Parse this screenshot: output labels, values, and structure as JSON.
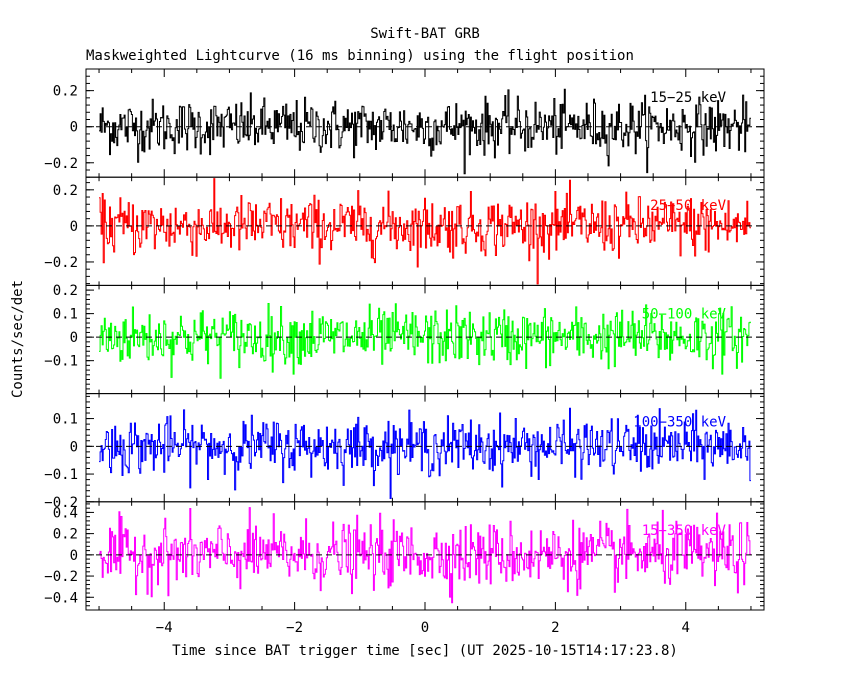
{
  "title": "Swift-BAT GRB",
  "subtitle": "Maskweighted Lightcurve (16 ms binning) using the flight position",
  "xlabel": "Time since BAT trigger time [sec] (UT 2025-10-15T14:17:23.8)",
  "ylabel": "Counts/sec/det",
  "chart_data": {
    "type": "line",
    "title": "Swift-BAT GRB",
    "subtitle": "Maskweighted Lightcurve (16 ms binning) using the flight position",
    "xlabel": "Time since BAT trigger time [sec] (UT 2025-10-15T14:17:23.8)",
    "ylabel": "Counts/sec/det",
    "xlim": [
      -5.2,
      5.2
    ],
    "x_ticks": [
      -4,
      -2,
      0,
      2,
      4
    ],
    "x_tick_labels": [
      "−4",
      "−2",
      "0",
      "2",
      "4"
    ],
    "t_start": -5.0,
    "t_end": 5.0,
    "bin_width": 0.016,
    "series": [
      {
        "name": "15-25 keV",
        "label": "15−25 keV",
        "color": "#000000",
        "ylim": [
          -0.28,
          0.32
        ],
        "sigma": 0.075,
        "yticks": [
          -0.2,
          0,
          0.2
        ],
        "ytick_labels": [
          "−0.2",
          "0",
          "0.2"
        ]
      },
      {
        "name": "25-50 keV",
        "label": "25−50 keV",
        "color": "#ff0000",
        "ylim": [
          -0.33,
          0.27
        ],
        "sigma": 0.08,
        "yticks": [
          -0.2,
          0,
          0.2
        ],
        "ytick_labels": [
          "−0.2",
          "0",
          "0.2"
        ]
      },
      {
        "name": "50-100 keV",
        "label": "50−100 keV",
        "color": "#00ff00",
        "ylim": [
          -0.24,
          0.22
        ],
        "sigma": 0.06,
        "yticks": [
          -0.1,
          0,
          0.1,
          0.2
        ],
        "ytick_labels": [
          "−0.1",
          "0",
          "0.1",
          "0.2"
        ]
      },
      {
        "name": "100-350 keV",
        "label": "100−350 keV",
        "color": "#0000ff",
        "ylim": [
          -0.2,
          0.19
        ],
        "sigma": 0.05,
        "yticks": [
          -0.2,
          -0.1,
          0,
          0.1
        ],
        "ytick_labels": [
          "−0.2",
          "−0.1",
          "0",
          "0.1"
        ]
      },
      {
        "name": "15-350 keV",
        "label": "15−350 keV",
        "color": "#ff00ff",
        "ylim": [
          -0.52,
          0.5
        ],
        "sigma": 0.15,
        "yticks": [
          -0.4,
          -0.2,
          0,
          0.2,
          0.4
        ],
        "ytick_labels": [
          "−0.4",
          "−0.2",
          "0",
          "0.2",
          "0.4"
        ]
      }
    ]
  }
}
